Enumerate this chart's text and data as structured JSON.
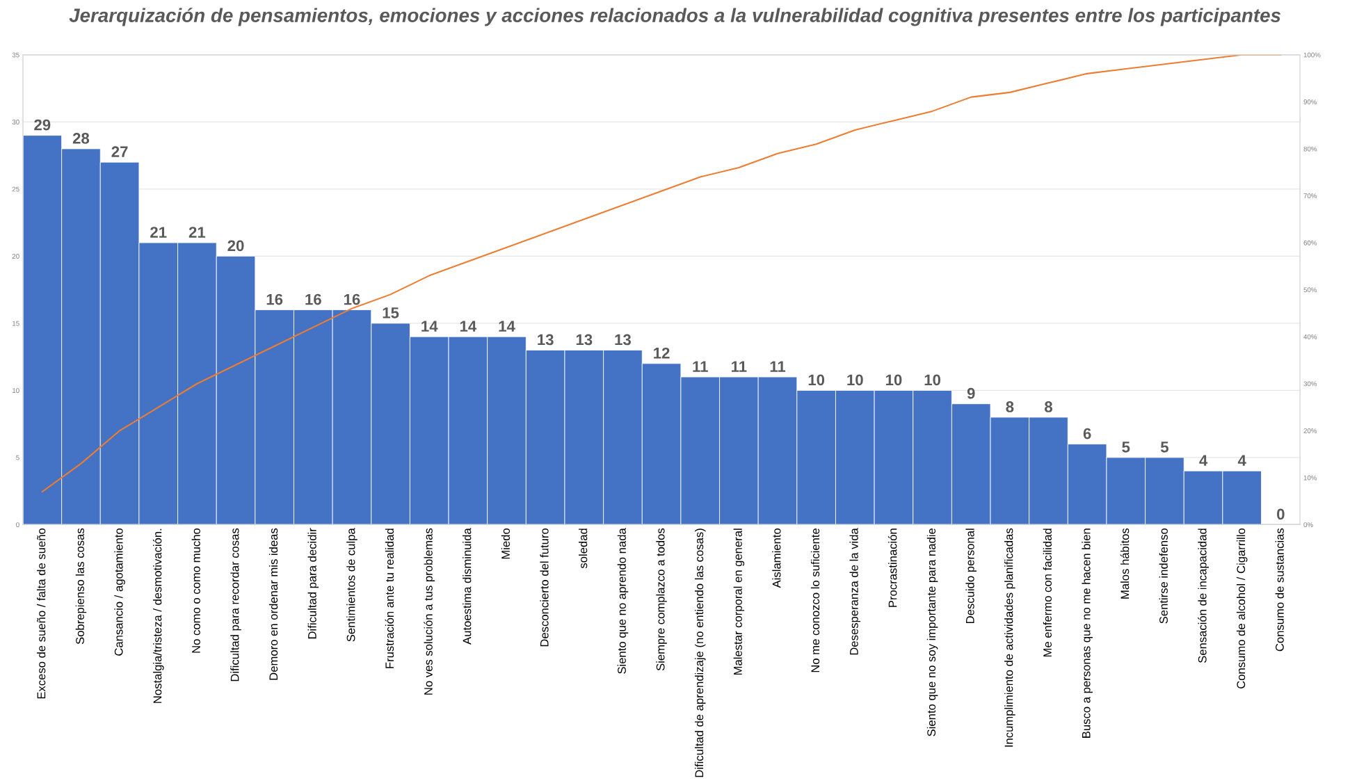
{
  "chart_data": {
    "type": "bar",
    "title": "Jerarquización de pensamientos, emociones y acciones relacionados a la vulnerabilidad cognitiva presentes entre los participantes",
    "categories": [
      "Exceso de sueño / falta de sueño",
      "Sobrepienso las cosas",
      "Cansancio / agotamiento",
      "Nostalgia/tristeza / desmotivación.",
      "No como o como mucho",
      "Dificultad para recordar cosas",
      "Demoro en ordenar mis ideas",
      "Dificultad para decidir",
      "Sentimientos de culpa",
      "Frustración ante tu realidad",
      "No ves solución a tus problemas",
      "Autoestima disminuida",
      "Miedo",
      "Desconcierto del futuro",
      "soledad",
      "Siento que no aprendo nada",
      "Siempre complazco a todos",
      "Dificultad de aprendizaje (no entiendo las cosas)",
      "Malestar corporal en general",
      "Aislamiento",
      "No me conozco lo suficiente",
      "Desesperanza de la vida",
      "Procrastinación",
      "Siento que no soy importante para nadie",
      "Descuido personal",
      "Incumplimiento de actividades planificadas",
      "Me enfermo con facilidad",
      "Busco a personas que no me hacen bien",
      "Malos hábitos",
      "Sentirse indefenso",
      "Sensación de incapacidad",
      "Consumo de alcohol / Cigarrillo",
      "Consumo de sustancias"
    ],
    "series": [
      {
        "color": "#4472c4",
        "values": [
          29,
          28,
          27,
          21,
          21,
          20,
          16,
          16,
          16,
          15,
          14,
          14,
          14,
          13,
          13,
          13,
          12,
          11,
          11,
          11,
          10,
          10,
          10,
          10,
          9,
          8,
          8,
          6,
          5,
          5,
          4,
          4,
          0
        ],
        "value_labels": [
          "29",
          "28",
          "27",
          "21",
          "21",
          "20",
          "16",
          "16",
          "16",
          "15",
          "14",
          "14",
          "14",
          "13",
          "13",
          "13",
          "12",
          "11",
          "11",
          "11",
          "10",
          "10",
          "10",
          "10",
          "9",
          "8",
          "8",
          "6",
          "5",
          "5",
          "4",
          "4",
          "0"
        ]
      },
      {
        "type": "line",
        "axis": "y2",
        "color": "#ed7d31",
        "values": [
          7,
          13,
          20,
          25,
          30,
          34,
          38,
          42,
          46,
          49,
          53,
          56,
          59,
          62,
          65,
          68,
          71,
          74,
          76,
          79,
          81,
          84,
          86,
          88,
          91,
          92,
          94,
          96,
          97,
          98,
          99,
          100,
          100
        ]
      }
    ],
    "ylim": [
      0,
      35
    ],
    "yticks": [
      0,
      5,
      10,
      15,
      20,
      25,
      30,
      35
    ],
    "y2lim": [
      0,
      100
    ],
    "y2ticks": [
      {
        "value": 0,
        "label": "0%"
      },
      {
        "value": 10,
        "label": "10%"
      },
      {
        "value": 20,
        "label": "20%"
      },
      {
        "value": 30,
        "label": "30%"
      },
      {
        "value": 40,
        "label": "40%"
      },
      {
        "value": 50,
        "label": "50%"
      },
      {
        "value": 60,
        "label": "60%"
      },
      {
        "value": 70,
        "label": "70%"
      },
      {
        "value": 80,
        "label": "80%"
      },
      {
        "value": 90,
        "label": "90%"
      },
      {
        "value": 100,
        "label": "100%"
      }
    ],
    "grid": "y",
    "legend": false,
    "marker": "none",
    "line_style": "solid"
  }
}
